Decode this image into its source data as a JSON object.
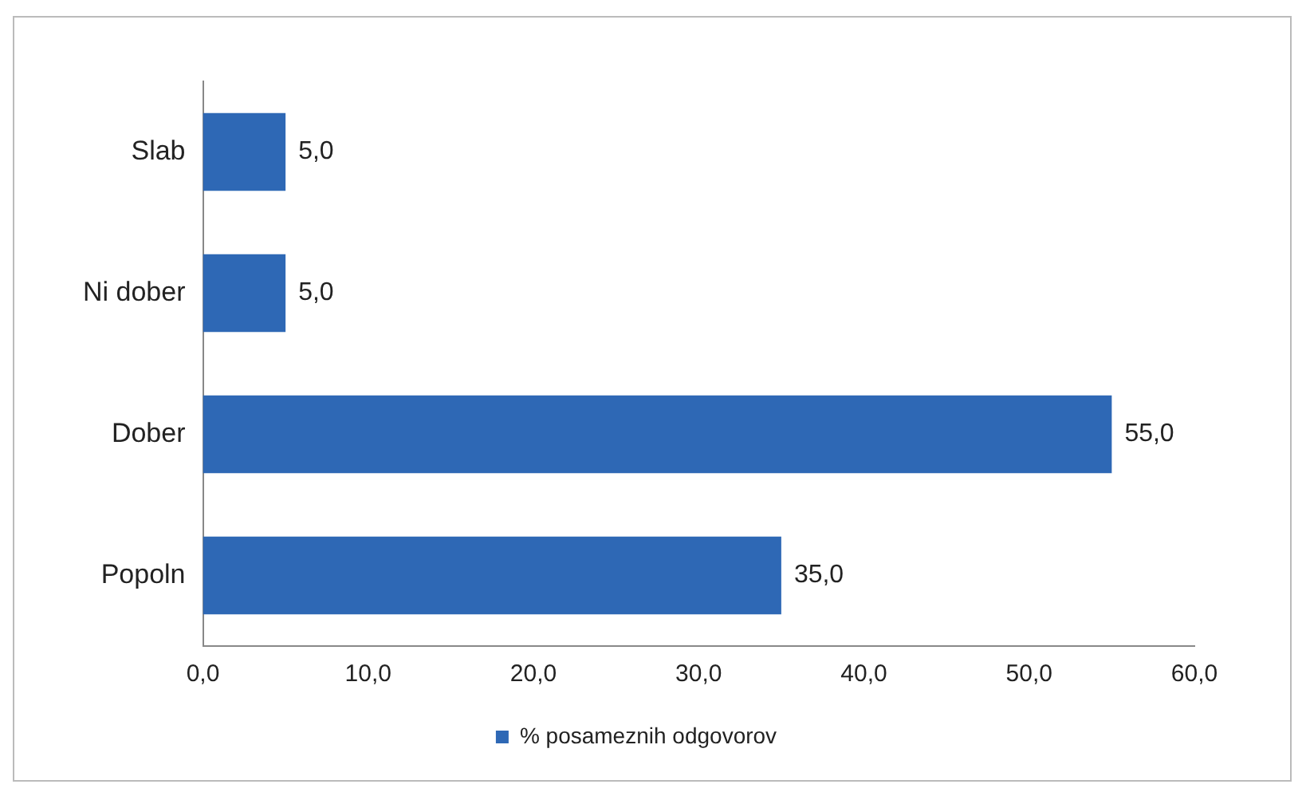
{
  "chart_data": {
    "type": "bar",
    "orientation": "horizontal",
    "categories": [
      "Slab",
      "Ni dober",
      "Dober",
      "Popoln"
    ],
    "series": [
      {
        "name": "% posameznih odgovorov",
        "color": "#2e68b5",
        "values": [
          5,
          5,
          55,
          35
        ],
        "value_labels": [
          "5,0",
          "5,0",
          "55,0",
          "35,0"
        ]
      }
    ],
    "xlim": [
      0,
      60
    ],
    "xticks": [
      {
        "value": 0,
        "label": "0,0"
      },
      {
        "value": 10,
        "label": "10,0"
      },
      {
        "value": 20,
        "label": "20,0"
      },
      {
        "value": 30,
        "label": "30,0"
      },
      {
        "value": 40,
        "label": "40,0"
      },
      {
        "value": 50,
        "label": "50,0"
      },
      {
        "value": 60,
        "label": "60,0"
      }
    ],
    "grid": false,
    "legend": "bottom"
  }
}
